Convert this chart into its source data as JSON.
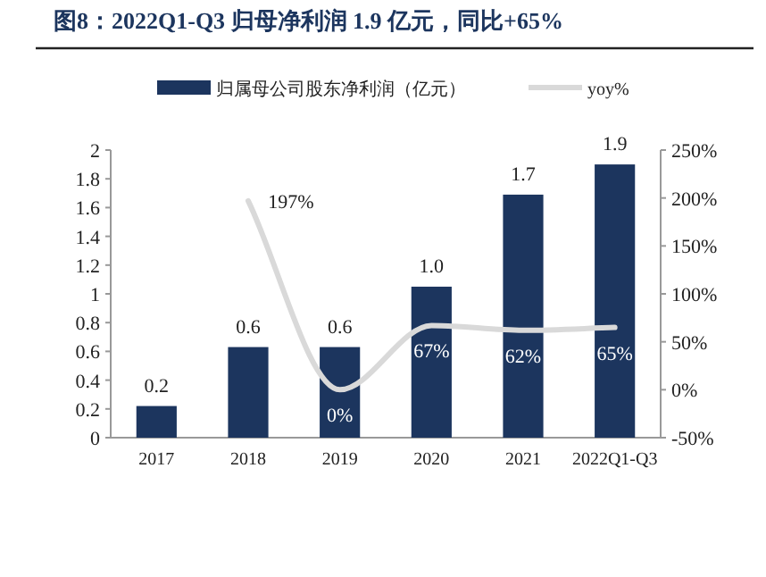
{
  "chart_data": {
    "type": "bar",
    "title": "图8：2022Q1-Q3 归母净利润 1.9 亿元，同比+65%",
    "categories": [
      "2017",
      "2018",
      "2019",
      "2020",
      "2021",
      "2022Q1-Q3"
    ],
    "series": [
      {
        "name": "归属母公司股东净利润（亿元）",
        "color": "#1c355e",
        "values": [
          0.22,
          0.63,
          0.63,
          1.05,
          1.69,
          1.9
        ],
        "value_labels": [
          "0.2",
          "0.6",
          "0.6",
          "1.0",
          "1.7",
          "1.9"
        ]
      },
      {
        "name": "yoy%",
        "type": "line",
        "axis": "y2",
        "color": "#d9d9d9",
        "values": [
          null,
          197,
          0,
          67,
          62,
          65
        ],
        "value_labels": [
          null,
          "197%",
          "0%",
          "67%",
          "62%",
          "65%"
        ]
      }
    ],
    "ylim": [
      0,
      2
    ],
    "yticks": [
      0,
      0.2,
      0.4,
      0.6,
      0.8,
      1,
      1.2,
      1.4,
      1.6,
      1.8,
      2
    ],
    "y2lim": [
      -50,
      250
    ],
    "y2ticks": [
      {
        "value": -50,
        "label": "-50%"
      },
      {
        "value": 0,
        "label": "0%"
      },
      {
        "value": 50,
        "label": "50%"
      },
      {
        "value": 100,
        "label": "100%"
      },
      {
        "value": 150,
        "label": "150%"
      },
      {
        "value": 200,
        "label": "200%"
      },
      {
        "value": 250,
        "label": "250%"
      }
    ],
    "legend": "top",
    "grid": false,
    "marker": "none",
    "line_style": "solid"
  }
}
